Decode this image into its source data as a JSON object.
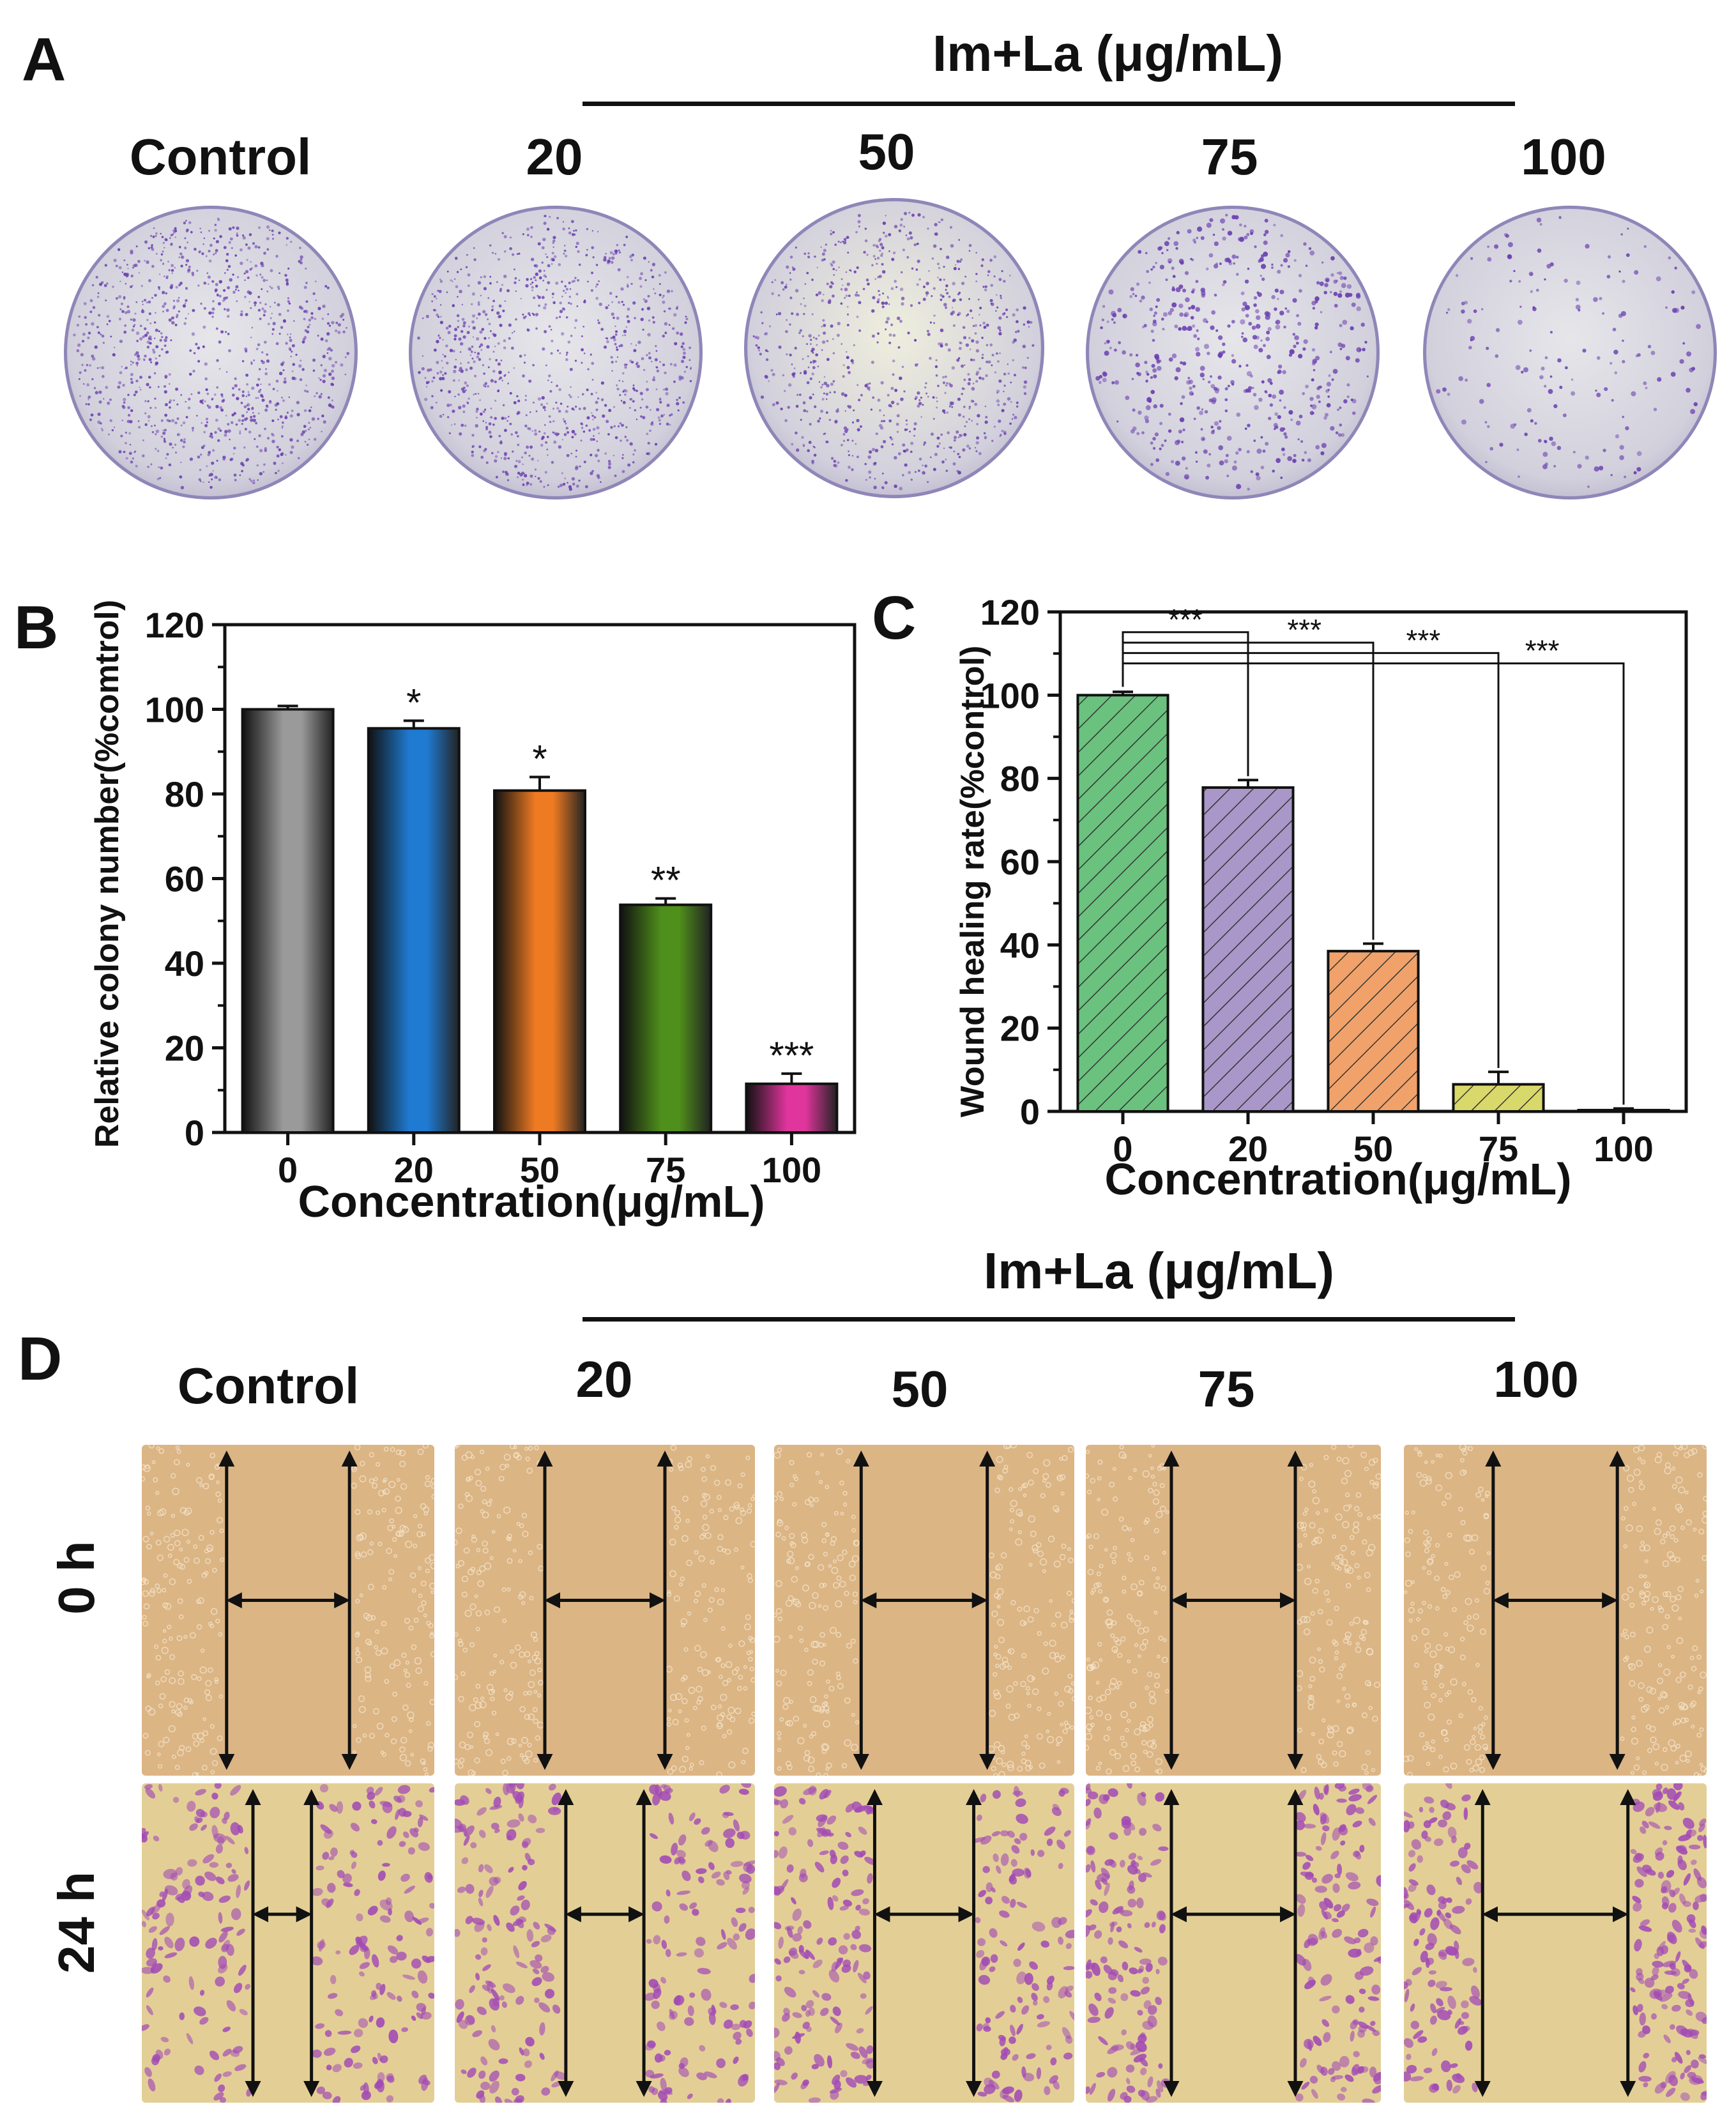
{
  "panels": {
    "A": {
      "letter": "A",
      "group_header": "Im+La (μg/mL)",
      "labels": [
        "Control",
        "20",
        "50",
        "75",
        "100"
      ],
      "dish_density": [
        1.0,
        0.95,
        0.8,
        0.54,
        0.12
      ]
    },
    "D": {
      "letter": "D",
      "group_header": "Im+La (μg/mL)",
      "labels": [
        "Control",
        "20",
        "50",
        "75",
        "100"
      ],
      "rows": [
        "0 h",
        "24 h"
      ],
      "gap_fraction_0h": [
        0.42,
        0.4,
        0.42,
        0.42,
        0.41
      ],
      "gap_fraction_24h": [
        0.2,
        0.26,
        0.33,
        0.42,
        0.48
      ]
    }
  },
  "colors": {
    "bars_B": [
      "#9a9a9a",
      "#1f7ad1",
      "#ee7a22",
      "#4f8f1b",
      "#e0359c"
    ],
    "bars_C": [
      "#6ac27e",
      "#a897c8",
      "#f0a26a",
      "#d9d86a",
      "#888888"
    ],
    "stain": "#6a3fb0",
    "microscope_0h": "#dcb585",
    "microscope_24h": "#e3cf96"
  },
  "chart_data": [
    {
      "id": "B",
      "letter": "B",
      "type": "bar",
      "categories": [
        "0",
        "20",
        "50",
        "75",
        "100"
      ],
      "values": [
        100,
        95.5,
        80.8,
        53.8,
        11.5
      ],
      "errors": [
        0.8,
        1.8,
        3.2,
        1.5,
        2.4
      ],
      "significance": [
        "",
        "*",
        "*",
        "**",
        "***"
      ],
      "xlabel": "Concentration(μg/mL)",
      "ylabel": "Relative colony number(%comtrol)",
      "ylim": [
        0,
        120
      ],
      "yticks": [
        "0",
        "20",
        "40",
        "60",
        "80",
        "100",
        "120"
      ]
    },
    {
      "id": "C",
      "letter": "C",
      "type": "bar",
      "categories": [
        "0",
        "20",
        "50",
        "75",
        "100"
      ],
      "values": [
        100,
        77.8,
        38.5,
        6.5,
        0.3
      ],
      "errors": [
        0.8,
        1.8,
        1.8,
        3.0,
        0.4
      ],
      "significance_brackets": [
        "***",
        "***",
        "***",
        "***"
      ],
      "xlabel": "Concentration(μg/mL)",
      "ylabel": "Wound healing rate(%control)",
      "ylim": [
        0,
        120
      ],
      "yticks": [
        "0",
        "20",
        "40",
        "60",
        "80",
        "100",
        "120"
      ]
    }
  ]
}
